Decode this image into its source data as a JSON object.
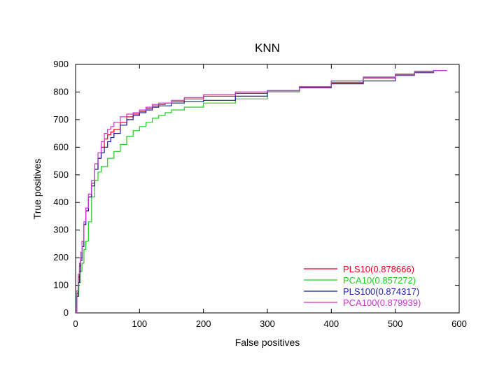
{
  "chart_data": {
    "type": "line",
    "title": "KNN",
    "xlabel": "False positives",
    "ylabel": "True positives",
    "xlim": [
      0,
      600
    ],
    "ylim": [
      0,
      900
    ],
    "xticks": [
      "0",
      "100",
      "200",
      "300",
      "400",
      "500",
      "600"
    ],
    "yticks": [
      "0",
      "100",
      "200",
      "300",
      "400",
      "500",
      "600",
      "700",
      "800",
      "900"
    ],
    "grid": false,
    "legend_position": "bottom-right",
    "series": [
      {
        "name": "PLS10(0.878666)",
        "color": "#e8001c",
        "x": [
          0,
          2,
          4,
          6,
          8,
          10,
          13,
          16,
          20,
          25,
          30,
          35,
          40,
          45,
          50,
          55,
          60,
          70,
          80,
          90,
          100,
          110,
          120,
          130,
          140,
          150,
          170,
          200,
          250,
          300,
          350,
          400,
          450,
          500,
          530,
          560,
          580
        ],
        "y": [
          0,
          70,
          130,
          170,
          200,
          240,
          320,
          370,
          420,
          470,
          520,
          560,
          600,
          630,
          645,
          655,
          665,
          690,
          710,
          720,
          730,
          740,
          750,
          755,
          760,
          765,
          775,
          785,
          795,
          805,
          820,
          835,
          850,
          865,
          875,
          878,
          879
        ]
      },
      {
        "name": "PCA10(0.857272)",
        "color": "#22cc22",
        "x": [
          0,
          2,
          5,
          8,
          10,
          13,
          16,
          20,
          25,
          30,
          35,
          40,
          50,
          60,
          70,
          80,
          90,
          100,
          110,
          120,
          130,
          140,
          150,
          170,
          200,
          250,
          300,
          350,
          400,
          450,
          500,
          530,
          560,
          580
        ],
        "y": [
          0,
          60,
          110,
          150,
          180,
          230,
          260,
          330,
          420,
          480,
          510,
          530,
          560,
          585,
          610,
          640,
          660,
          675,
          690,
          705,
          715,
          725,
          735,
          745,
          760,
          775,
          800,
          820,
          840,
          855,
          865,
          875,
          878,
          879
        ]
      },
      {
        "name": "PLS100(0.874317)",
        "color": "#1a1aa0",
        "x": [
          0,
          2,
          4,
          6,
          8,
          10,
          13,
          16,
          20,
          25,
          30,
          35,
          40,
          45,
          50,
          55,
          60,
          70,
          80,
          90,
          100,
          110,
          120,
          130,
          150,
          170,
          200,
          250,
          300,
          350,
          400,
          450,
          500,
          530,
          560,
          580
        ],
        "y": [
          0,
          60,
          110,
          150,
          190,
          240,
          320,
          370,
          420,
          460,
          520,
          560,
          580,
          600,
          620,
          635,
          650,
          680,
          700,
          715,
          725,
          735,
          745,
          750,
          760,
          765,
          770,
          785,
          805,
          815,
          830,
          840,
          860,
          870,
          878,
          879
        ]
      },
      {
        "name": "PCA100(0.879939)",
        "color": "#cc33cc",
        "x": [
          0,
          2,
          4,
          6,
          8,
          10,
          13,
          16,
          20,
          25,
          30,
          35,
          40,
          45,
          50,
          55,
          60,
          70,
          80,
          90,
          100,
          110,
          120,
          130,
          150,
          170,
          200,
          250,
          300,
          350,
          400,
          450,
          500,
          530,
          560,
          580
        ],
        "y": [
          0,
          80,
          140,
          180,
          220,
          260,
          330,
          380,
          430,
          480,
          540,
          580,
          620,
          650,
          665,
          675,
          690,
          710,
          720,
          725,
          735,
          745,
          755,
          760,
          770,
          780,
          790,
          800,
          805,
          818,
          840,
          852,
          862,
          872,
          878,
          879
        ]
      }
    ]
  }
}
